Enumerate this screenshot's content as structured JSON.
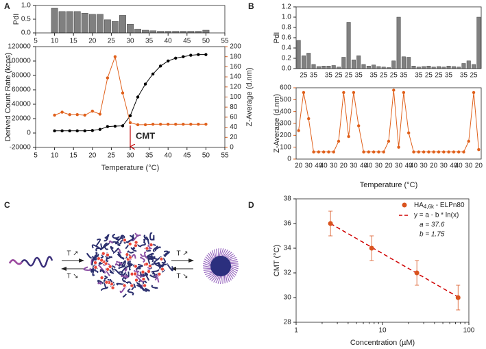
{
  "panel_labels": [
    "A",
    "B",
    "C",
    "D"
  ],
  "chart_data": [
    {
      "type": "bar",
      "ylabel": "PdI",
      "color": "#808080",
      "x": [
        10,
        12,
        14,
        16,
        18,
        20,
        22,
        24,
        26,
        28,
        30,
        32,
        34,
        36,
        38,
        40,
        42,
        44,
        46,
        48,
        50
      ],
      "values": [
        0.9,
        0.78,
        0.78,
        0.78,
        0.72,
        0.68,
        0.68,
        0.48,
        0.42,
        0.64,
        0.32,
        0.14,
        0.1,
        0.08,
        0.06,
        0.06,
        0.06,
        0.06,
        0.06,
        0.06,
        0.1
      ],
      "xlim": [
        5,
        55
      ],
      "xticks": [
        5,
        10,
        15,
        20,
        25,
        30,
        35,
        40,
        45,
        50,
        55
      ],
      "ylim": [
        0,
        1
      ],
      "yticks": [
        {
          "value": 0,
          "label": "0.0"
        },
        {
          "value": 0.5,
          "label": "0.5"
        },
        {
          "value": 1,
          "label": "1.0"
        }
      ]
    },
    {
      "type": "line",
      "xlabel": "Temperature (°C)",
      "ylabel": "Derived Count Rate (kcps)",
      "y2label": "Z-Average (d.nm)",
      "x": [
        10,
        12,
        14,
        16,
        18,
        20,
        22,
        24,
        26,
        28,
        30,
        32,
        34,
        36,
        38,
        40,
        42,
        44,
        46,
        48,
        50
      ],
      "series": [
        {
          "color": "#000000",
          "values": [
            3000,
            3000,
            3000,
            3000,
            3000,
            3500,
            5000,
            9000,
            9500,
            10000,
            24000,
            50000,
            68000,
            82000,
            93000,
            100000,
            104000,
            106000,
            108000,
            109000,
            109000
          ]
        },
        {
          "color": "#e0601b",
          "axis": "y2",
          "values": [
            64,
            70,
            65,
            65,
            64,
            72,
            66,
            138,
            180,
            108,
            49,
            45,
            45,
            46,
            46,
            46,
            46,
            46,
            46,
            46,
            46
          ]
        }
      ],
      "xlim": [
        5,
        55
      ],
      "xticks": [
        5,
        10,
        15,
        20,
        25,
        30,
        35,
        40,
        45,
        50,
        55
      ],
      "ylim": [
        -20000,
        120000
      ],
      "yticks": [
        -20000,
        0,
        20000,
        40000,
        60000,
        80000,
        100000,
        120000
      ],
      "y2lim": [
        0,
        200
      ],
      "y2ticks": [
        0,
        20,
        40,
        60,
        80,
        100,
        120,
        140,
        160,
        180,
        200
      ],
      "annotation": {
        "text": "CMT",
        "x": 30,
        "color": "#c00000"
      }
    },
    {
      "type": "bar",
      "ylabel": "PdI",
      "color": "#808080",
      "categories": [
        null,
        25,
        null,
        35,
        null,
        null,
        35,
        null,
        25,
        null,
        25,
        null,
        35,
        null,
        null,
        35,
        null,
        25,
        null,
        25,
        null,
        35,
        null,
        null,
        35,
        null,
        25,
        null,
        25,
        null,
        35,
        null,
        null,
        35,
        null,
        25,
        null
      ],
      "values": [
        0.55,
        0.25,
        0.3,
        0.08,
        0.04,
        0.05,
        0.05,
        0.06,
        0.03,
        0.22,
        0.9,
        0.17,
        0.25,
        0.08,
        0.05,
        0.07,
        0.04,
        0.03,
        0.02,
        0.15,
        1.0,
        0.23,
        0.22,
        0.05,
        0.03,
        0.04,
        0.05,
        0.03,
        0.04,
        0.03,
        0.05,
        0.04,
        0.03,
        0.1,
        0.15,
        0.08,
        1.0
      ],
      "ylim": [
        0,
        1.2
      ],
      "yticks": [
        {
          "value": 0,
          "label": "0.0"
        },
        {
          "value": 0.2,
          "label": "0.2"
        },
        {
          "value": 0.4,
          "label": "0.4"
        },
        {
          "value": 0.6,
          "label": "0.6"
        },
        {
          "value": 0.8,
          "label": "0.8"
        },
        {
          "value": 1,
          "label": "1.0"
        },
        {
          "value": 1.2,
          "label": "1.2"
        }
      ]
    },
    {
      "type": "line",
      "xlabel": "Temperature (°C)",
      "ylabel": "Z-Average (d.nm)",
      "color": "#e0601b",
      "categories": [
        20,
        null,
        30,
        null,
        40,
        40,
        null,
        30,
        null,
        20,
        null,
        30,
        null,
        40,
        40,
        null,
        30,
        null,
        20,
        null,
        30,
        null,
        40,
        40,
        null,
        30,
        null,
        20,
        null,
        30,
        null,
        40,
        40,
        null,
        30,
        null,
        20
      ],
      "values": [
        240,
        560,
        340,
        60,
        60,
        60,
        60,
        60,
        150,
        560,
        190,
        560,
        280,
        60,
        60,
        60,
        60,
        60,
        150,
        580,
        100,
        560,
        220,
        60,
        60,
        60,
        60,
        60,
        60,
        60,
        60,
        60,
        60,
        60,
        150,
        560,
        80
      ],
      "ylim": [
        0,
        600
      ],
      "yticks": [
        0,
        100,
        200,
        300,
        400,
        500,
        600
      ]
    },
    {
      "type": "scatter",
      "xlabel": "Concentration (µM)",
      "ylabel": "CMT (°C)",
      "log_x": true,
      "series": [
        {
          "name": "HA",
          "name_sub": "4,6k",
          "name_rest": " - ELPn80",
          "color": "#d9531e",
          "x": [
            2.5,
            7.5,
            25,
            75
          ],
          "values": [
            36,
            34,
            32,
            30
          ],
          "errors": [
            1,
            1,
            1,
            1
          ]
        }
      ],
      "fit": {
        "label": "y = a - b * ln(x)",
        "a": {
          "value": 37.6,
          "label": "a = 37.6"
        },
        "b": {
          "value": 1.75,
          "label": "b = 1.75"
        },
        "color": "#d00000"
      },
      "xlim": [
        1,
        100
      ],
      "xticks": [
        1,
        10,
        100
      ],
      "ylim": [
        28,
        38
      ],
      "yticks": [
        28,
        30,
        32,
        34,
        36,
        38
      ]
    }
  ],
  "diagram": {
    "arrow_labels": [
      "T ↗",
      "T ↘",
      "T ↗",
      "T ↘"
    ]
  }
}
